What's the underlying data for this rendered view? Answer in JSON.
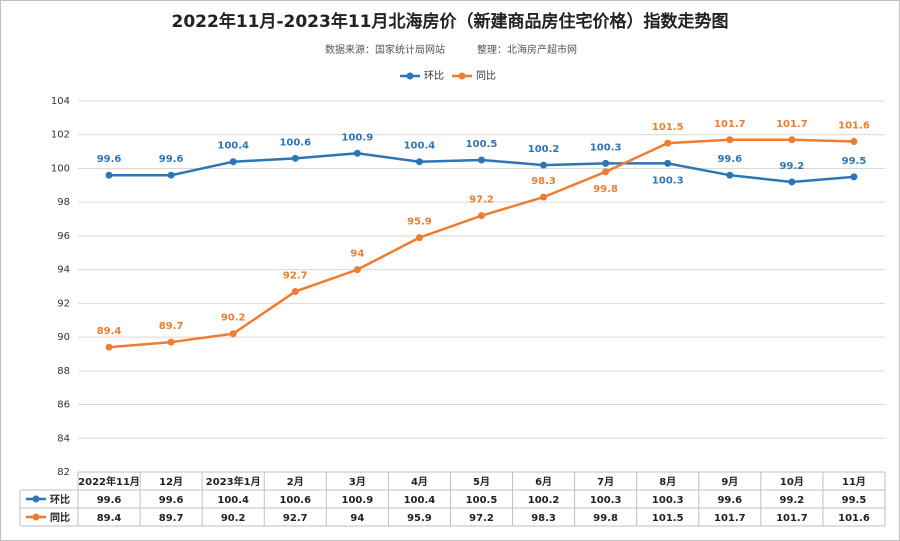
{
  "chart_data": {
    "type": "line",
    "title": "2022年11月-2023年11月北海房价（新建商品房住宅价格）指数走势图",
    "source": "数据来源：国家统计局网站",
    "compiler": "整理：北海房产超市网",
    "categories": [
      "2022年11月",
      "12月",
      "2023年1月",
      "2月",
      "3月",
      "4月",
      "5月",
      "6月",
      "7月",
      "8月",
      "9月",
      "10月",
      "11月"
    ],
    "series": [
      {
        "name": "环比",
        "color": "#2e75b6",
        "values": [
          99.6,
          99.6,
          100.4,
          100.6,
          100.9,
          100.4,
          100.5,
          100.2,
          100.3,
          100.3,
          99.6,
          99.2,
          99.5
        ]
      },
      {
        "name": "同比",
        "color": "#ed7d31",
        "values": [
          89.4,
          89.7,
          90.2,
          92.7,
          94,
          95.9,
          97.2,
          98.3,
          99.8,
          101.5,
          101.7,
          101.7,
          101.6
        ]
      }
    ],
    "ylim": [
      82,
      104
    ],
    "yticks": [
      82,
      84,
      86,
      88,
      90,
      92,
      94,
      96,
      98,
      100,
      102,
      104
    ],
    "grid": true
  }
}
